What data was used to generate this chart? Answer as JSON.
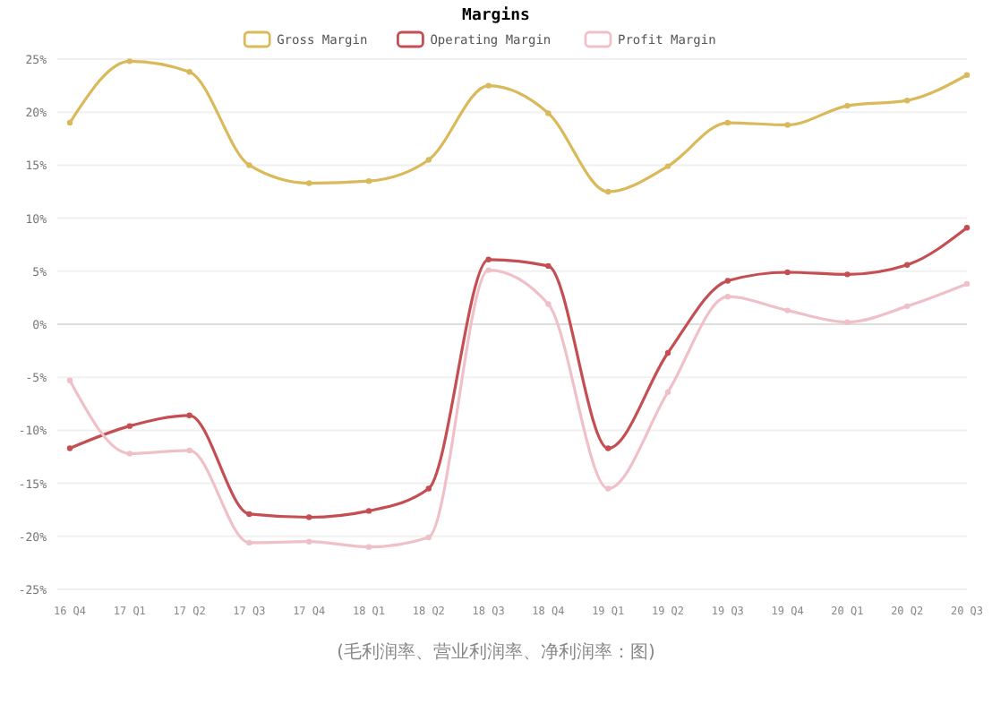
{
  "chart_data": {
    "type": "line",
    "title": "Margins",
    "categories": [
      "16 Q4",
      "17 Q1",
      "17 Q2",
      "17 Q3",
      "17 Q4",
      "18 Q1",
      "18 Q2",
      "18 Q3",
      "18 Q4",
      "19 Q1",
      "19 Q2",
      "19 Q3",
      "19 Q4",
      "20 Q1",
      "20 Q2",
      "20 Q3"
    ],
    "series": [
      {
        "name": "Gross Margin",
        "color": "#d9b95a",
        "values": [
          19,
          24.8,
          23.8,
          15,
          13.3,
          13.5,
          15.5,
          22.5,
          19.9,
          12.5,
          14.9,
          19,
          18.8,
          20.6,
          21.1,
          23.5
        ]
      },
      {
        "name": "Operating Margin",
        "color": "#c44e52",
        "values": [
          -11.7,
          -9.6,
          -8.6,
          -17.9,
          -18.2,
          -17.6,
          -15.5,
          6.1,
          5.5,
          -11.7,
          -2.7,
          4.1,
          4.9,
          4.7,
          5.6,
          9.1
        ]
      },
      {
        "name": "Profit Margin",
        "color": "#f0c0c8",
        "values": [
          -5.3,
          -12.2,
          -11.9,
          -20.6,
          -20.5,
          -21,
          -20.1,
          5.1,
          1.9,
          -15.5,
          -6.4,
          2.6,
          1.3,
          0.2,
          1.7,
          3.8
        ]
      }
    ],
    "ylim": [
      -25,
      25
    ],
    "yticks": [
      {
        "value": -25,
        "label": "-25%"
      },
      {
        "value": -20,
        "label": "-20%"
      },
      {
        "value": -15,
        "label": "-15%"
      },
      {
        "value": -10,
        "label": "-10%"
      },
      {
        "value": -5,
        "label": "-5%"
      },
      {
        "value": 0,
        "label": "0%"
      },
      {
        "value": 5,
        "label": "5%"
      },
      {
        "value": 10,
        "label": "10%"
      },
      {
        "value": 15,
        "label": "15%"
      },
      {
        "value": 20,
        "label": "20%"
      },
      {
        "value": 25,
        "label": "25%"
      }
    ],
    "grid": "y",
    "legend": "top",
    "marker": "circle",
    "line_style": "solid",
    "annotations": [
      "(毛利润率、营业利润率、净利润率：图)"
    ]
  }
}
